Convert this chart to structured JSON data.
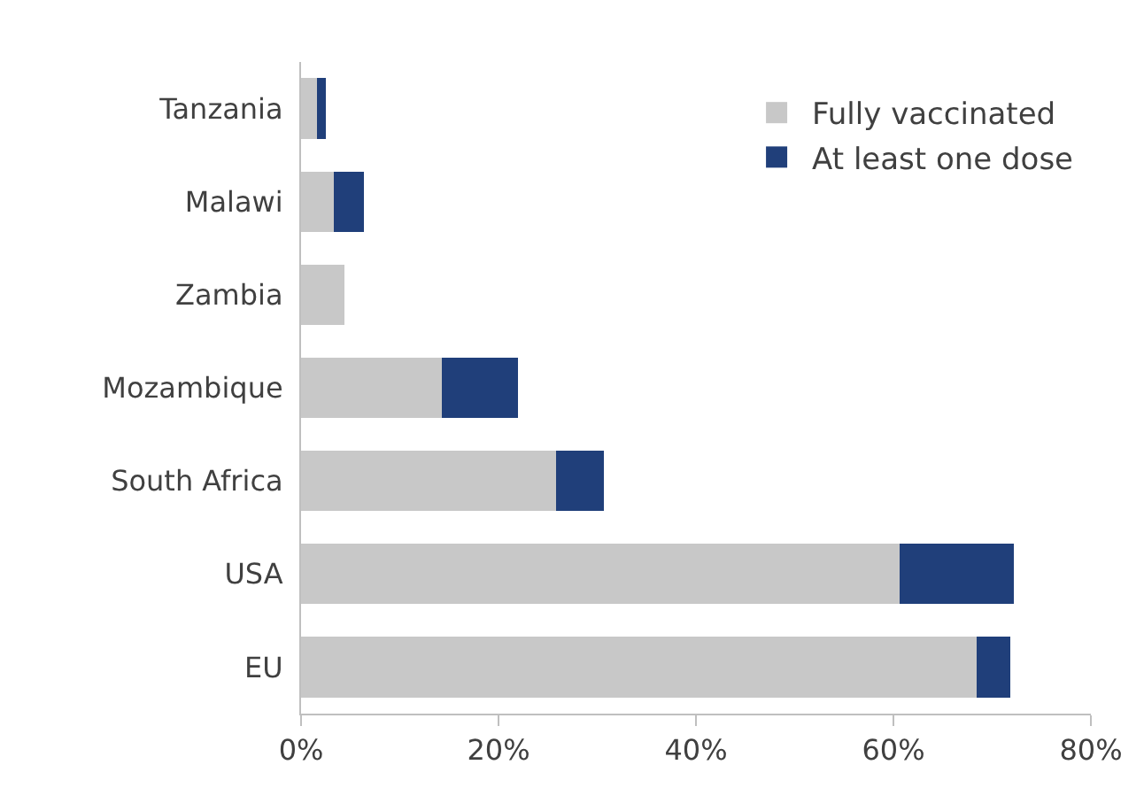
{
  "chart_data": {
    "type": "bar",
    "orientation": "horizontal",
    "stacked": true,
    "categories": [
      "Tanzania",
      "Malawi",
      "Zambia",
      "Mozambique",
      "South Africa",
      "USA",
      "EU"
    ],
    "series": [
      {
        "name": "Fully vaccinated",
        "color": "#c8c8c8",
        "values": [
          1.6,
          3.3,
          4.4,
          14.3,
          25.8,
          60.6,
          68.4
        ]
      },
      {
        "name": "At least one dose",
        "color": "#203f7a",
        "values": [
          0.9,
          3.1,
          null,
          7.7,
          4.9,
          11.6,
          3.4
        ]
      }
    ],
    "xlim": [
      0,
      80
    ],
    "xticks": [
      {
        "value": 0,
        "label": "0%"
      },
      {
        "value": 20,
        "label": "20%"
      },
      {
        "value": 40,
        "label": "40%"
      },
      {
        "value": 60,
        "label": "60%"
      },
      {
        "value": 80,
        "label": "80%"
      }
    ],
    "legend": "top right"
  }
}
